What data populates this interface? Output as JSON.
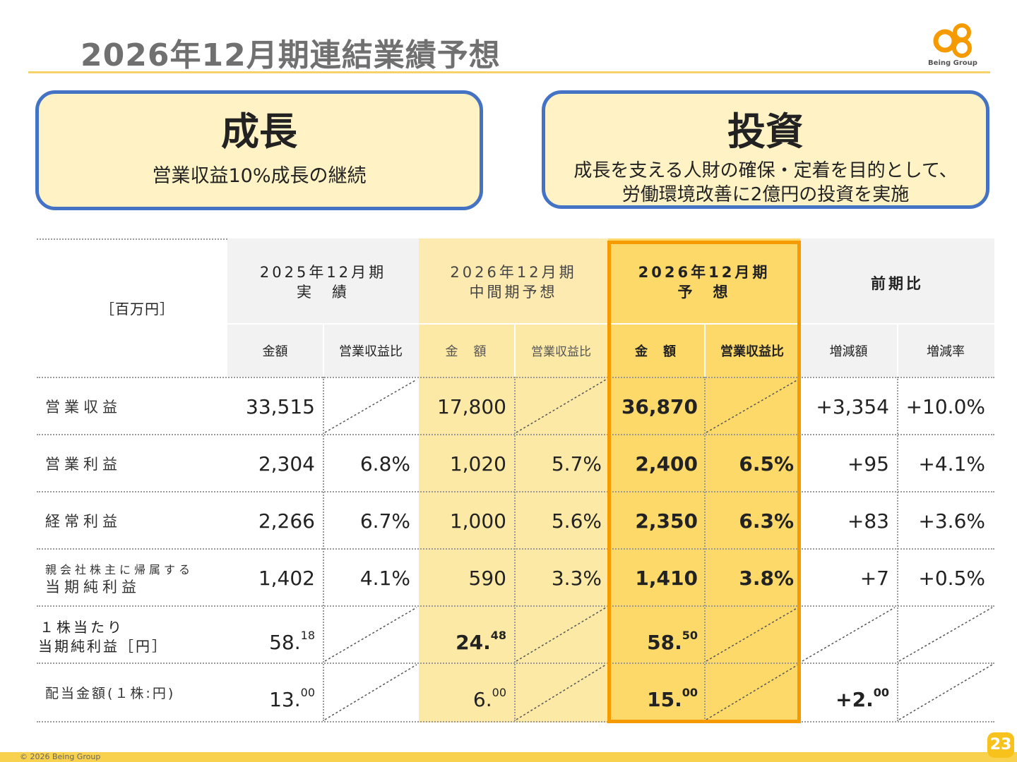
{
  "header": {
    "title": "2026年12月期連結業績予想",
    "logo_text": "Being Group"
  },
  "callouts": {
    "growth": {
      "title": "成長",
      "body": "営業収益10%成長の継続"
    },
    "invest": {
      "title": "投資",
      "body_line1": "成長を支える人財の確保・定着を目的として、",
      "body_line2": "労働環境改善に2億円の投資を実施"
    }
  },
  "table": {
    "unit": "［百万円］",
    "columns": {
      "fy2025": {
        "line1": "2025年12月期",
        "line2": "実　績",
        "amount": "金額",
        "ratio": "営業収益比"
      },
      "fy2026_mid": {
        "line1": "2026年12月期",
        "line2": "中間期予想",
        "amount": "金　額",
        "ratio": "営業収益比"
      },
      "fy2026": {
        "line1": "2026年12月期",
        "line2": "予　想",
        "amount": "金　額",
        "ratio": "営業収益比"
      },
      "yoy": {
        "line1": "前期比",
        "amount": "増減額",
        "ratio": "増減率"
      }
    },
    "rows": [
      {
        "label": "営業収益",
        "fy2025_amt": "33,515",
        "fy2025_ratio": "",
        "mid_amt": "17,800",
        "mid_ratio": "",
        "fy2026_amt": "36,870",
        "fy2026_ratio": "",
        "yoy_amt": "+3,354",
        "yoy_rate": "+10.0%"
      },
      {
        "label": "営業利益",
        "fy2025_amt": "2,304",
        "fy2025_ratio": "6.8%",
        "mid_amt": "1,020",
        "mid_ratio": "5.7%",
        "fy2026_amt": "2,400",
        "fy2026_ratio": "6.5%",
        "yoy_amt": "+95",
        "yoy_rate": "+4.1%"
      },
      {
        "label": "経常利益",
        "fy2025_amt": "2,266",
        "fy2025_ratio": "6.7%",
        "mid_amt": "1,000",
        "mid_ratio": "5.6%",
        "fy2026_amt": "2,350",
        "fy2026_ratio": "6.3%",
        "yoy_amt": "+83",
        "yoy_rate": "+3.6%"
      },
      {
        "label_line1": "親会社株主に帰属する",
        "label_line2": "当期純利益",
        "fy2025_amt": "1,402",
        "fy2025_ratio": "4.1%",
        "mid_amt": "590",
        "mid_ratio": "3.3%",
        "fy2026_amt": "1,410",
        "fy2026_ratio": "3.8%",
        "yoy_amt": "+7",
        "yoy_rate": "+0.5%"
      },
      {
        "label_line1": "１株当たり",
        "label_line2": "当期純利益［円］",
        "fy2025_int": "58.",
        "fy2025_dec": "18",
        "mid_int": "24.",
        "mid_dec": "48",
        "fy2026_int": "58.",
        "fy2026_dec": "50"
      },
      {
        "label": "配当金額(１株:円)",
        "fy2025_int": "13.",
        "fy2025_dec": "00",
        "mid_int": "6.",
        "mid_dec": "00",
        "fy2026_int": "15.",
        "fy2026_dec": "00",
        "yoy_int": "+2.",
        "yoy_dec": "00"
      }
    ]
  },
  "footer": {
    "copyright": "© 2026 Being Group",
    "page_number": "23"
  },
  "colors": {
    "accent_blue": "#4472c4",
    "highlight_orange": "#f59b00",
    "mid_fill": "#fde9a6",
    "forecast_fill": "#fdd96a",
    "gray_fill": "#f2f2f2"
  }
}
